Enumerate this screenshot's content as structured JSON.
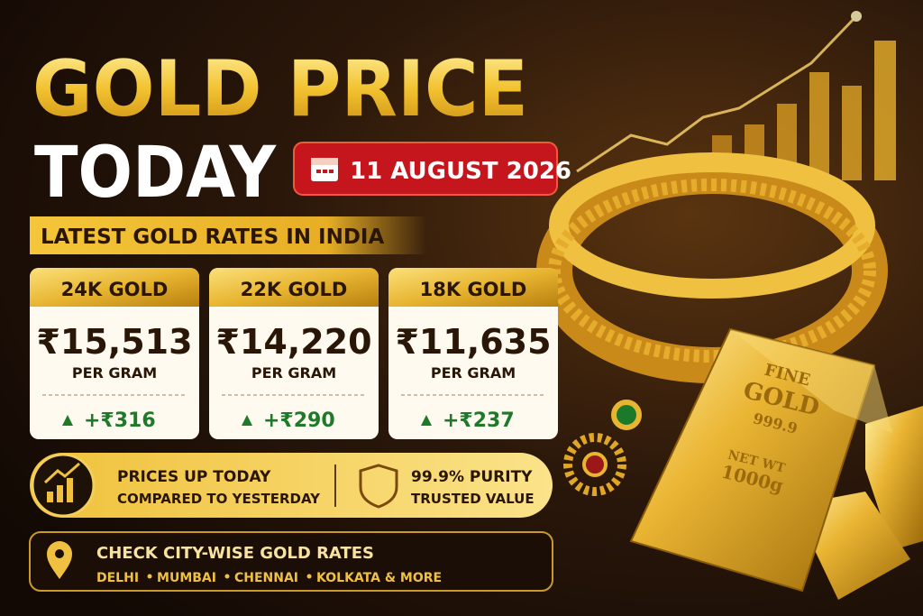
{
  "header": {
    "title_line1": "GOLD PRICE",
    "title_line2": "TODAY",
    "date": "11 AUGUST 2026",
    "subtitle": "LATEST GOLD RATES IN INDIA"
  },
  "cards": [
    {
      "label": "24K GOLD",
      "price": "₹15,513",
      "unit": "PER GRAM",
      "change": "+₹316"
    },
    {
      "label": "22K GOLD",
      "price": "₹14,220",
      "unit": "PER GRAM",
      "change": "+₹290"
    },
    {
      "label": "18K GOLD",
      "price": "₹11,635",
      "unit": "PER GRAM",
      "change": "+₹237"
    }
  ],
  "info": {
    "trend_title": "PRICES UP TODAY",
    "trend_sub": "COMPARED TO YESTERDAY",
    "purity_title": "99.9% PURITY",
    "purity_sub": "TRUSTED VALUE"
  },
  "city": {
    "title": "CHECK CITY-WISE GOLD RATES",
    "cities": [
      "DELHI",
      "MUMBAI",
      "CHENNAI",
      "KOLKATA & MORE"
    ]
  },
  "gold_bar": {
    "line1": "FINE",
    "line2": "GOLD",
    "purity": "999.9",
    "weight_label": "NET WT",
    "weight": "1000g"
  }
}
